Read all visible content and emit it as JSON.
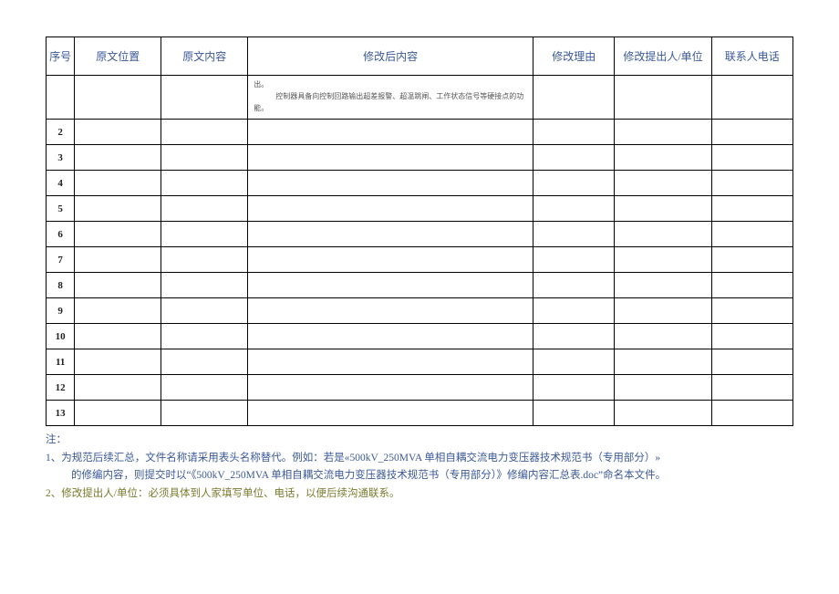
{
  "columns": {
    "seq": "序号",
    "pos": "原文位置",
    "orig": "原文内容",
    "after": "修改后内容",
    "reason": "修改理由",
    "proposer": "修改提出人/单位",
    "phone": "联系人电话"
  },
  "row1_content_line1": "出。",
  "row1_content_line2": "　　　控制器具备向控制回路输出超差报警、超温跳闸、工作状态信号等硬接点的功能。",
  "seq": {
    "r2": "2",
    "r3": "3",
    "r4": "4",
    "r5": "5",
    "r6": "6",
    "r7": "7",
    "r8": "8",
    "r9": "9",
    "r10": "10",
    "r11": "11",
    "r12": "12",
    "r13": "13"
  },
  "notes": {
    "label": "注：",
    "n1a": "1、为规范后续汇总，文件名称请采用表头名称替代。例如：若是«500kV_250MVA 单相自耦交流电力变压器技术规范书（专用部分）»",
    "n1b": "的修编内容，则提交时以“《500kV_250MVA 单相自耦交流电力变压器技术规范书（专用部分）》修编内容汇总表.doc”命名本文件。",
    "n2": "2、修改提出人/单位：必须具体到人家填写单位、电话，以便后续沟通联系。"
  }
}
